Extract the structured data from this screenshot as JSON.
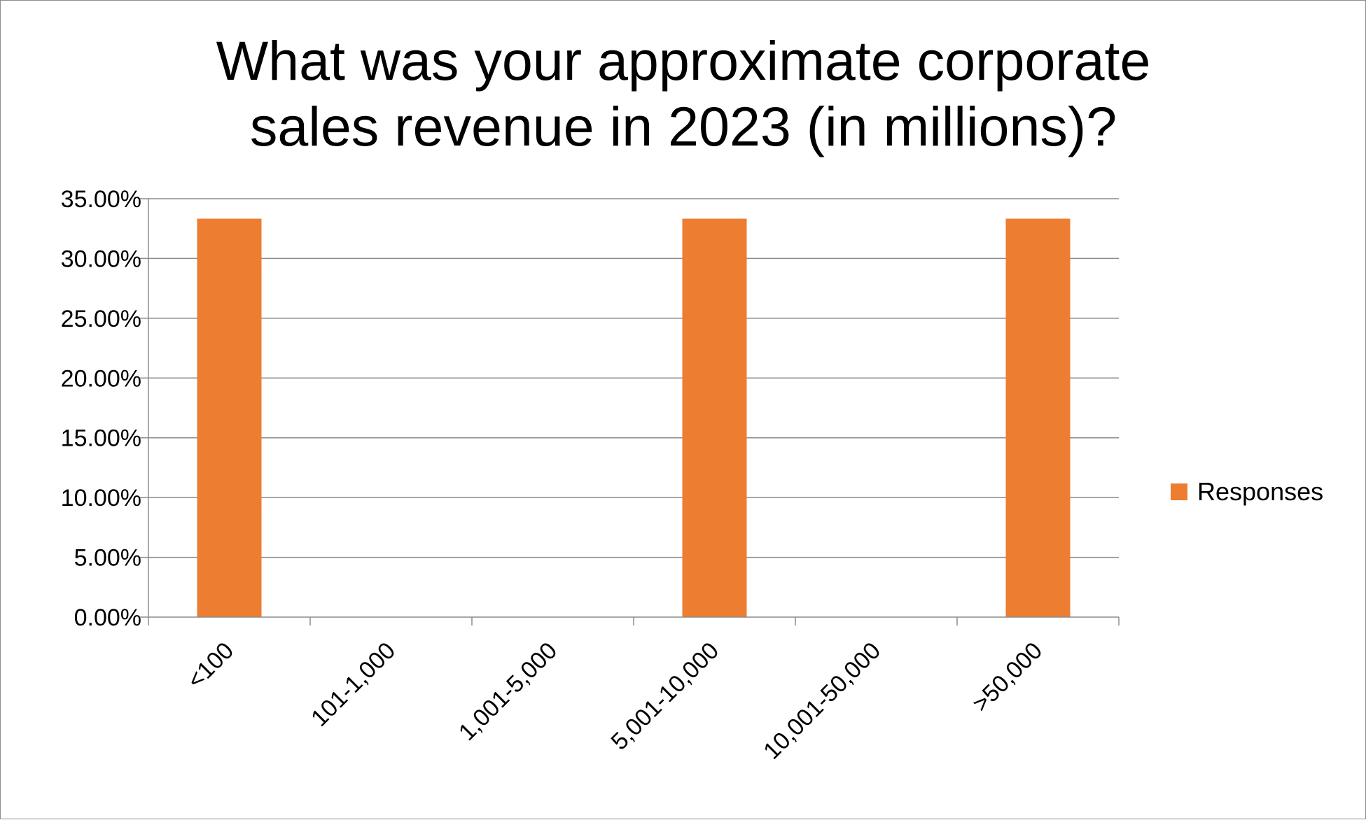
{
  "chart_data": {
    "type": "bar",
    "title_lines": [
      "What was your approximate corporate",
      "sales revenue in 2023 (in millions)?"
    ],
    "categories": [
      "<100",
      "101-1,000",
      "1,001-5,000",
      "5,001-10,000",
      "10,001-50,000",
      ">50,000"
    ],
    "series": [
      {
        "name": "Responses",
        "values": [
          0.3333,
          0,
          0,
          0.3333,
          0,
          0.3333
        ],
        "color": "#ed7d31"
      }
    ],
    "y_ticks": [
      "0.00%",
      "5.00%",
      "10.00%",
      "15.00%",
      "20.00%",
      "25.00%",
      "30.00%",
      "35.00%"
    ],
    "ylim": [
      0,
      0.35
    ],
    "y_format": "percent",
    "grid": true,
    "grid_color": "#8c8c8c",
    "legend_position": "right"
  }
}
